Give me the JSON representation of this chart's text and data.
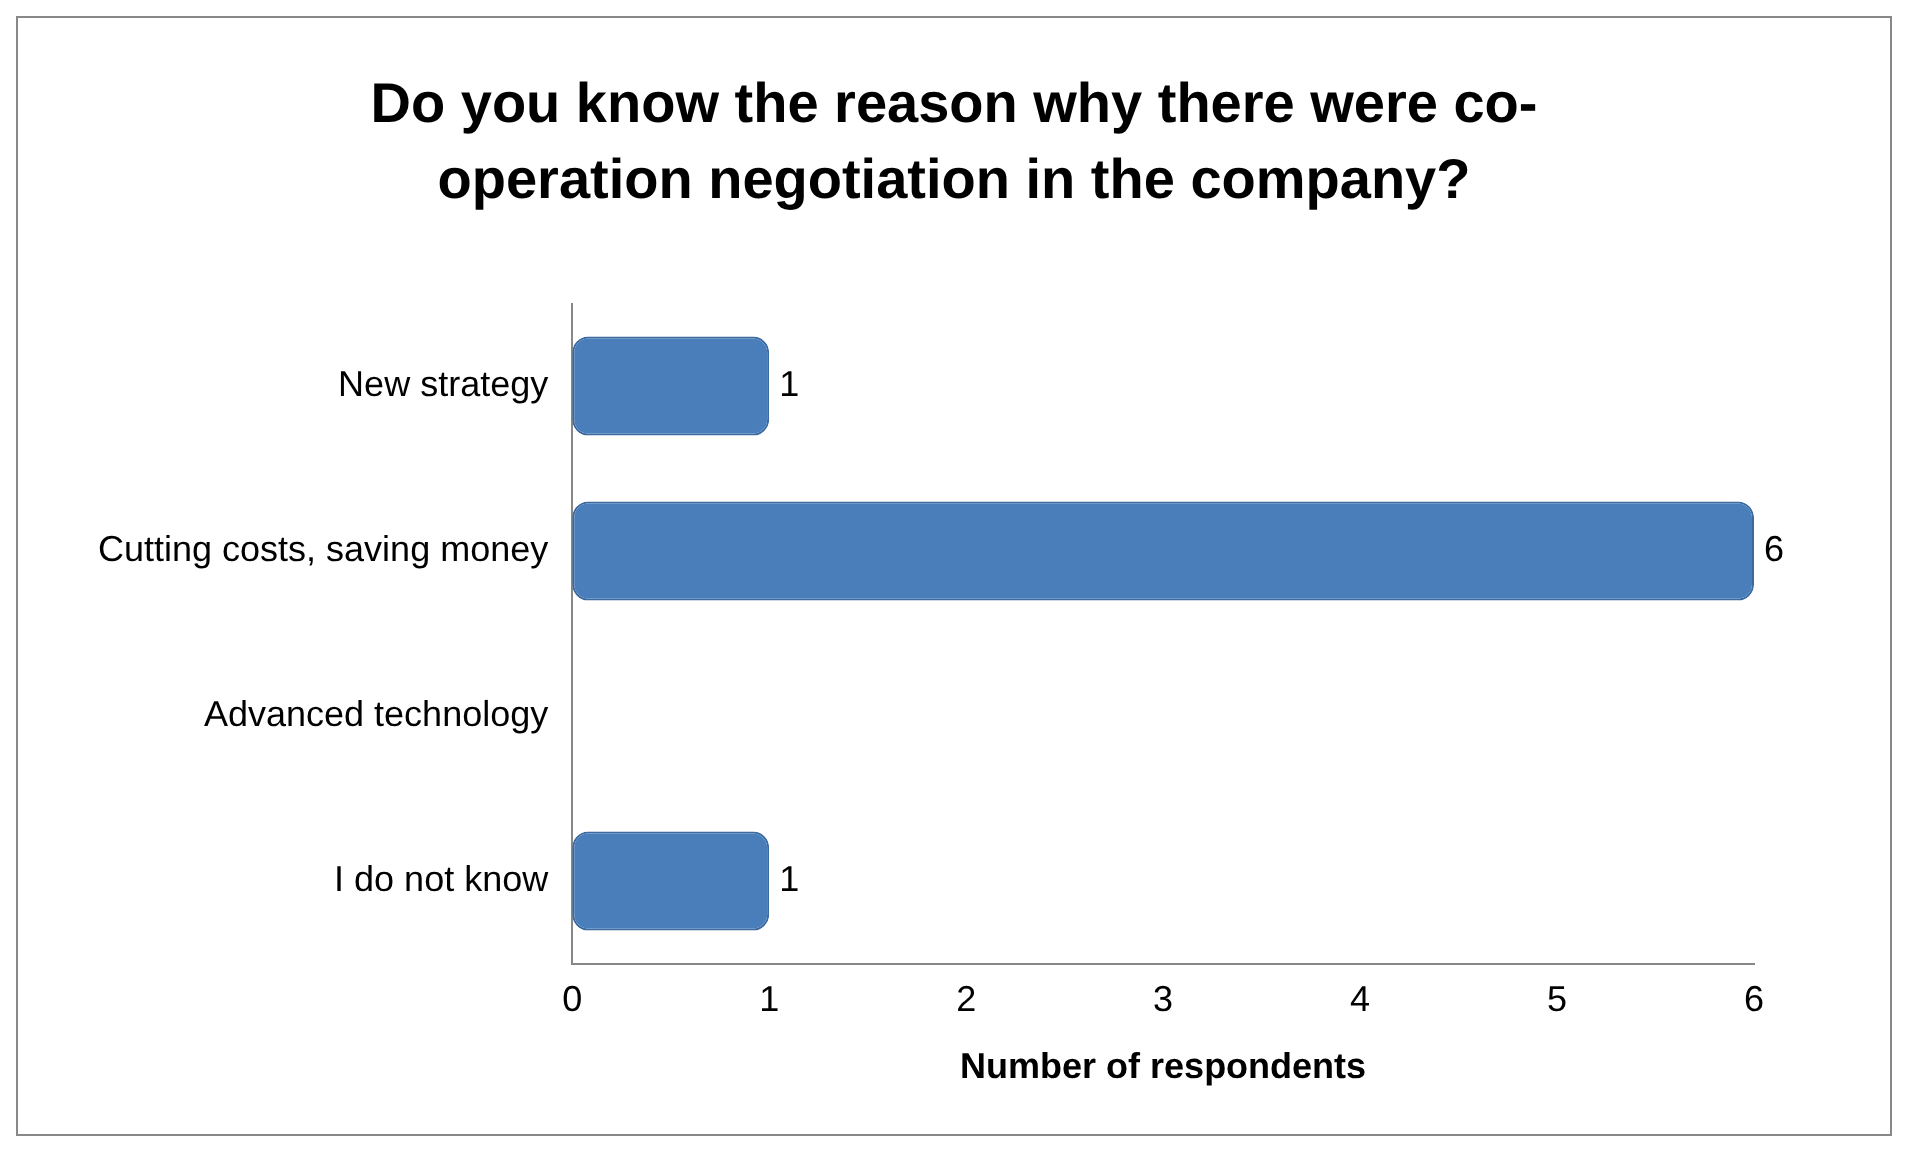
{
  "chart_data": {
    "type": "bar",
    "orientation": "horizontal",
    "title": "Do you know the reason why there were co-operation negotiation in the company?",
    "xlabel": "Number of respondents",
    "categories": [
      "New strategy",
      "Cutting costs, saving money",
      "Advanced technology",
      "I do not know"
    ],
    "values": [
      1,
      6,
      0,
      1
    ],
    "value_labels": [
      "1",
      "6",
      null,
      "1"
    ],
    "color": "#4a7ebb",
    "xlim": [
      0,
      6
    ],
    "xticks": [
      0,
      1,
      2,
      3,
      4,
      5,
      6
    ],
    "grid": false,
    "legend": false
  }
}
